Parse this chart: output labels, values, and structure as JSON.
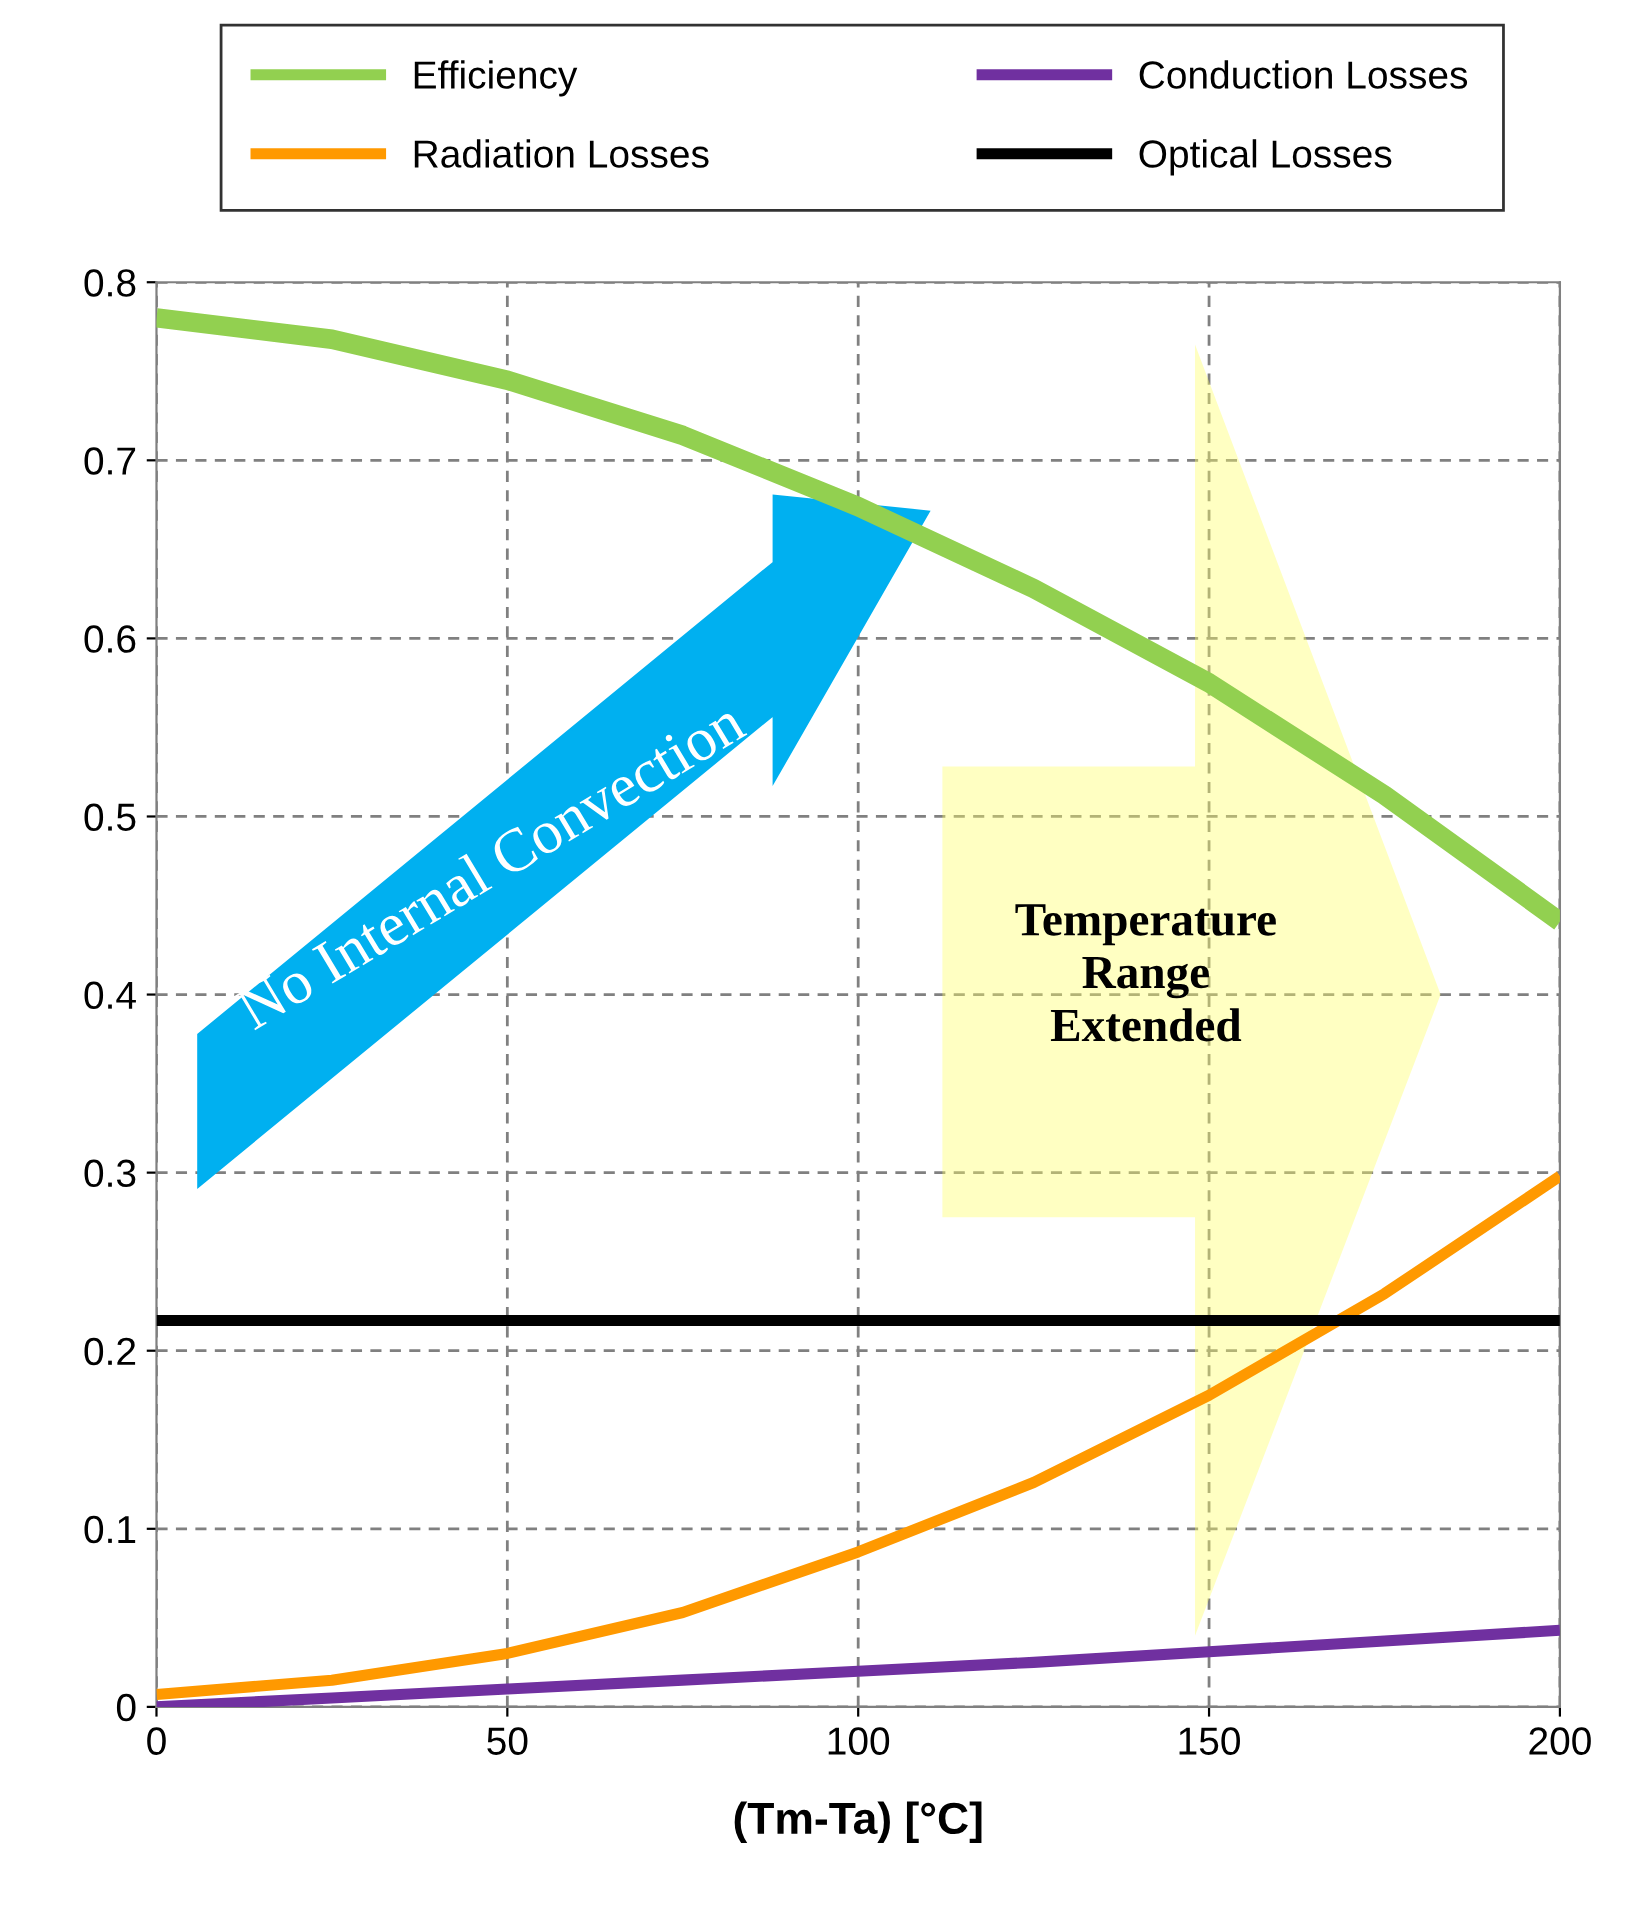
{
  "chart_data": {
    "type": "line",
    "xlabel": "(Tm-Ta) [°C]",
    "x": [
      0,
      25,
      50,
      75,
      100,
      125,
      150,
      175,
      200
    ],
    "series": [
      {
        "name": "Efficiency",
        "color": "#92d050",
        "values": [
          0.78,
          0.768,
          0.745,
          0.714,
          0.674,
          0.628,
          0.575,
          0.512,
          0.441
        ]
      },
      {
        "name": "Radiation Losses",
        "color": "#ff9900",
        "values": [
          0.007,
          0.015,
          0.03,
          0.053,
          0.087,
          0.126,
          0.175,
          0.232,
          0.298
        ]
      },
      {
        "name": "Conduction Losses",
        "color": "#7030a0",
        "values": [
          0,
          0.005,
          0.01,
          0.015,
          0.02,
          0.025,
          0.031,
          0.037,
          0.043
        ]
      },
      {
        "name": "Optical Losses",
        "color": "#000000",
        "values": [
          0.217,
          0.217,
          0.217,
          0.217,
          0.217,
          0.217,
          0.217,
          0.217,
          0.217
        ]
      }
    ],
    "xlim": [
      0,
      200
    ],
    "xticks": [
      0,
      50,
      100,
      150,
      200
    ],
    "ylim": [
      0,
      0.8
    ],
    "yticks": [
      0,
      0.1,
      0.2,
      0.3,
      0.4,
      0.5,
      0.6,
      0.7,
      0.8
    ],
    "grid": true,
    "legend": "top",
    "marker": "none",
    "line_style": "solid",
    "annotations": [
      "No Internal Convection",
      "Temperature\nRange\nExtended"
    ]
  }
}
